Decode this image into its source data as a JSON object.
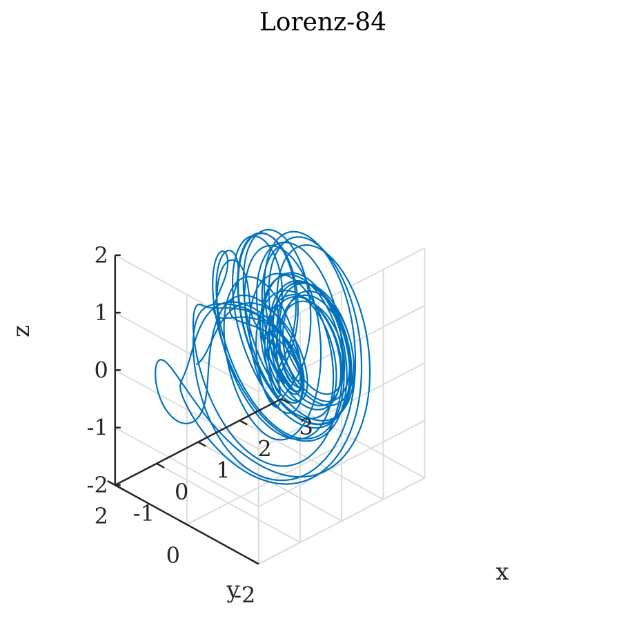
{
  "chart_data": {
    "type": "line",
    "projection": "3d",
    "title": "Lorenz-84",
    "xlabel": "x",
    "ylabel": "y",
    "zlabel": "z",
    "xlim": [
      -1,
      3
    ],
    "ylim": [
      -2,
      2
    ],
    "zlim": [
      -2,
      2
    ],
    "x_ticks": [
      -1,
      0,
      1,
      2,
      3
    ],
    "y_ticks": [
      -2,
      0,
      2
    ],
    "z_ticks": [
      -2,
      -1,
      0,
      1,
      2
    ],
    "x_tick_labels": [
      "-1",
      "0",
      "1",
      "2",
      "3"
    ],
    "y_tick_labels": [
      "-2",
      "0",
      "2"
    ],
    "z_tick_labels": [
      "-2",
      "-1",
      "0",
      "1",
      "2"
    ],
    "grid": true,
    "legend": "none",
    "line_color": "#0072BD",
    "axis_color": "#262626",
    "grid_color": "#dcdcdc"
  }
}
